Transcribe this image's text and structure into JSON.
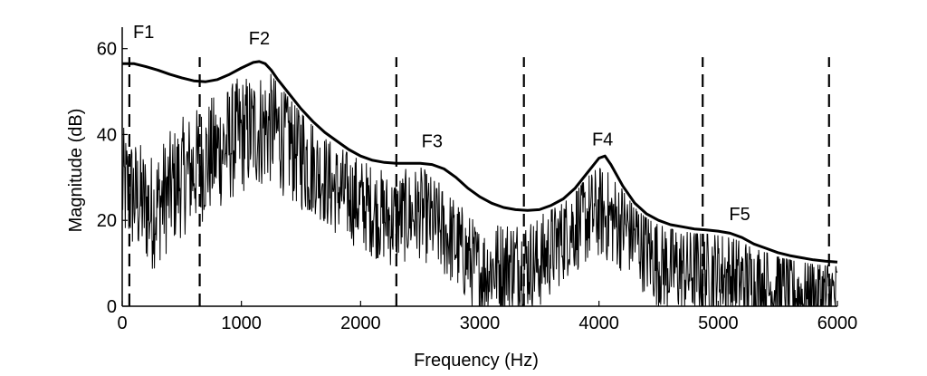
{
  "chart_data": {
    "type": "line",
    "xlabel": "Frequency (Hz)",
    "ylabel": "Magnitude (dB)",
    "xlim": [
      0,
      6000
    ],
    "ylim": [
      0,
      65
    ],
    "x_ticks": [
      0,
      1000,
      2000,
      3000,
      4000,
      5000,
      6000
    ],
    "y_ticks": [
      0,
      20,
      40,
      60
    ],
    "x_tick_labels": [
      "0",
      "1000",
      "2000",
      "3000",
      "4000",
      "5000",
      "6000"
    ],
    "y_tick_labels": [
      "0",
      "20",
      "40",
      "60"
    ],
    "grid": false,
    "legend": "none",
    "series": [
      {
        "role": "envelope",
        "style": "solid-thick",
        "x": [
          0,
          100,
          200,
          300,
          400,
          500,
          600,
          700,
          800,
          900,
          1000,
          1100,
          1150,
          1200,
          1250,
          1300,
          1400,
          1500,
          1600,
          1700,
          1800,
          1900,
          2000,
          2100,
          2200,
          2300,
          2400,
          2500,
          2600,
          2700,
          2800,
          2900,
          3000,
          3100,
          3200,
          3300,
          3400,
          3500,
          3600,
          3700,
          3800,
          3900,
          4000,
          4050,
          4100,
          4200,
          4300,
          4400,
          4500,
          4600,
          4700,
          4800,
          4900,
          5000,
          5100,
          5200,
          5300,
          5400,
          5500,
          5600,
          5700,
          5800,
          5900,
          6000
        ],
        "y": [
          56.5,
          56.5,
          55.8,
          55,
          54,
          53.2,
          52.5,
          52.3,
          52.8,
          54,
          55.5,
          56.8,
          57,
          56.5,
          55,
          53,
          49.5,
          46,
          43,
          40.5,
          38.5,
          36.5,
          35,
          34,
          33.5,
          33.3,
          33.3,
          33.3,
          33,
          32,
          30,
          27.5,
          25.5,
          24,
          23,
          22.5,
          22.3,
          22.5,
          23.5,
          25,
          27.5,
          31,
          34.5,
          35,
          33,
          28,
          24,
          21.5,
          20,
          19,
          18.5,
          18,
          17.8,
          17.5,
          17,
          16,
          14.5,
          13.5,
          12.5,
          11.8,
          11.3,
          10.8,
          10.5,
          10.3
        ]
      },
      {
        "role": "spectrum",
        "style": "solid-thin",
        "description_points_x": [
          0,
          250,
          500,
          750,
          1000,
          1250,
          1500,
          1750,
          2000,
          2250,
          2500,
          2750,
          3000,
          3250,
          3500,
          3750,
          4000,
          4250,
          4500,
          4750,
          5000,
          5250,
          5500,
          5750,
          6000
        ],
        "description_points_y": [
          28,
          22,
          30,
          35,
          40,
          42,
          36,
          28,
          24,
          20,
          22,
          16,
          8,
          10,
          10,
          18,
          22,
          18,
          10,
          8,
          8,
          5,
          4,
          2,
          2
        ]
      }
    ],
    "boundary_lines_x": [
      60,
      650,
      2300,
      3370,
      4870,
      5930
    ],
    "annotations": [
      {
        "text": "F1",
        "x": 180,
        "y": 62.5
      },
      {
        "text": "F2",
        "x": 1150,
        "y": 61
      },
      {
        "text": "F3",
        "x": 2600,
        "y": 37
      },
      {
        "text": "F4",
        "x": 4030,
        "y": 37.5
      },
      {
        "text": "F5",
        "x": 5180,
        "y": 20
      }
    ]
  }
}
